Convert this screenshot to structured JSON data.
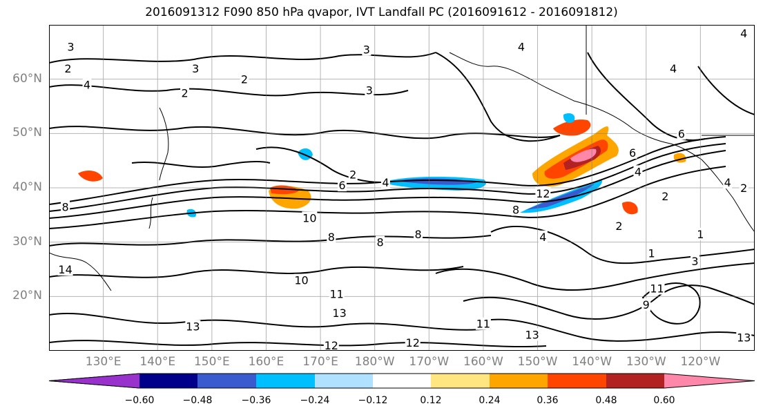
{
  "title": "2016091312 F090 850 hPa qvapor, IVT Landfall PC (2016091612 - 2016091812)",
  "map": {
    "lat_labels": [
      "60°N",
      "50°N",
      "40°N",
      "30°N",
      "20°N"
    ],
    "lat_values": [
      60,
      50,
      40,
      30,
      20
    ],
    "lon_labels": [
      "130°E",
      "140°E",
      "150°E",
      "160°E",
      "170°E",
      "180°W",
      "170°W",
      "160°W",
      "150°W",
      "140°W",
      "130°W",
      "120°W"
    ],
    "lon_values": [
      130,
      140,
      150,
      160,
      170,
      180,
      190,
      200,
      210,
      220,
      230,
      240
    ],
    "lat_range": [
      10,
      70
    ],
    "lon_range": [
      120,
      250
    ],
    "grid": true,
    "contour_labels": [
      {
        "text": "3",
        "lon": 124,
        "lat": 66
      },
      {
        "text": "2",
        "lon": 123.5,
        "lat": 62
      },
      {
        "text": "4",
        "lon": 127,
        "lat": 59
      },
      {
        "text": "3",
        "lon": 147,
        "lat": 62
      },
      {
        "text": "2",
        "lon": 145,
        "lat": 57.5
      },
      {
        "text": "2",
        "lon": 156,
        "lat": 60
      },
      {
        "text": "3",
        "lon": 178.5,
        "lat": 65.5
      },
      {
        "text": "3",
        "lon": 179,
        "lat": 58
      },
      {
        "text": "2",
        "lon": 176,
        "lat": 42.5
      },
      {
        "text": "6",
        "lon": 174,
        "lat": 40.5
      },
      {
        "text": "4",
        "lon": 182,
        "lat": 41
      },
      {
        "text": "10",
        "lon": 168,
        "lat": 34.5
      },
      {
        "text": "8",
        "lon": 172,
        "lat": 31
      },
      {
        "text": "8",
        "lon": 181,
        "lat": 30
      },
      {
        "text": "8",
        "lon": 188,
        "lat": 31.5
      },
      {
        "text": "8",
        "lon": 206,
        "lat": 36
      },
      {
        "text": "12",
        "lon": 211,
        "lat": 39
      },
      {
        "text": "4",
        "lon": 211,
        "lat": 31
      },
      {
        "text": "2",
        "lon": 225,
        "lat": 33
      },
      {
        "text": "1",
        "lon": 231,
        "lat": 28
      },
      {
        "text": "3",
        "lon": 239,
        "lat": 26.5
      },
      {
        "text": "1",
        "lon": 240,
        "lat": 31.5
      },
      {
        "text": "2",
        "lon": 233.5,
        "lat": 38.5
      },
      {
        "text": "4",
        "lon": 228.5,
        "lat": 43
      },
      {
        "text": "6",
        "lon": 227.5,
        "lat": 46.5
      },
      {
        "text": "6",
        "lon": 236.5,
        "lat": 50
      },
      {
        "text": "4",
        "lon": 245,
        "lat": 41
      },
      {
        "text": "2",
        "lon": 248,
        "lat": 40
      },
      {
        "text": "4",
        "lon": 207,
        "lat": 66
      },
      {
        "text": "4",
        "lon": 235,
        "lat": 62
      },
      {
        "text": "4",
        "lon": 248,
        "lat": 68.5
      },
      {
        "text": "10",
        "lon": 166.5,
        "lat": 23
      },
      {
        "text": "11",
        "lon": 173,
        "lat": 20.5
      },
      {
        "text": "13",
        "lon": 173.5,
        "lat": 17
      },
      {
        "text": "11",
        "lon": 200,
        "lat": 15
      },
      {
        "text": "13",
        "lon": 209,
        "lat": 13
      },
      {
        "text": "12",
        "lon": 187,
        "lat": 11.5
      },
      {
        "text": "12",
        "lon": 172,
        "lat": 11
      },
      {
        "text": "13",
        "lon": 146.5,
        "lat": 14.5
      },
      {
        "text": "14",
        "lon": 123,
        "lat": 25
      },
      {
        "text": "11",
        "lon": 232,
        "lat": 21.5
      },
      {
        "text": "9",
        "lon": 230,
        "lat": 18.5
      },
      {
        "text": "13",
        "lon": 248,
        "lat": 12.5
      },
      {
        "text": "8",
        "lon": 123,
        "lat": 36.5
      }
    ]
  },
  "colorbar": {
    "colors": [
      "#9932cc",
      "#00008b",
      "#3a5bd0",
      "#00bfff",
      "#b0e2ff",
      "#ffffff",
      "#ffe680",
      "#ffa500",
      "#ff4500",
      "#b22222",
      "#ff88aa"
    ],
    "tick_labels": [
      "−0.60",
      "−0.48",
      "−0.36",
      "−0.24",
      "−0.12",
      "0.12",
      "0.24",
      "0.36",
      "0.48",
      "0.60"
    ],
    "extend": "both"
  }
}
